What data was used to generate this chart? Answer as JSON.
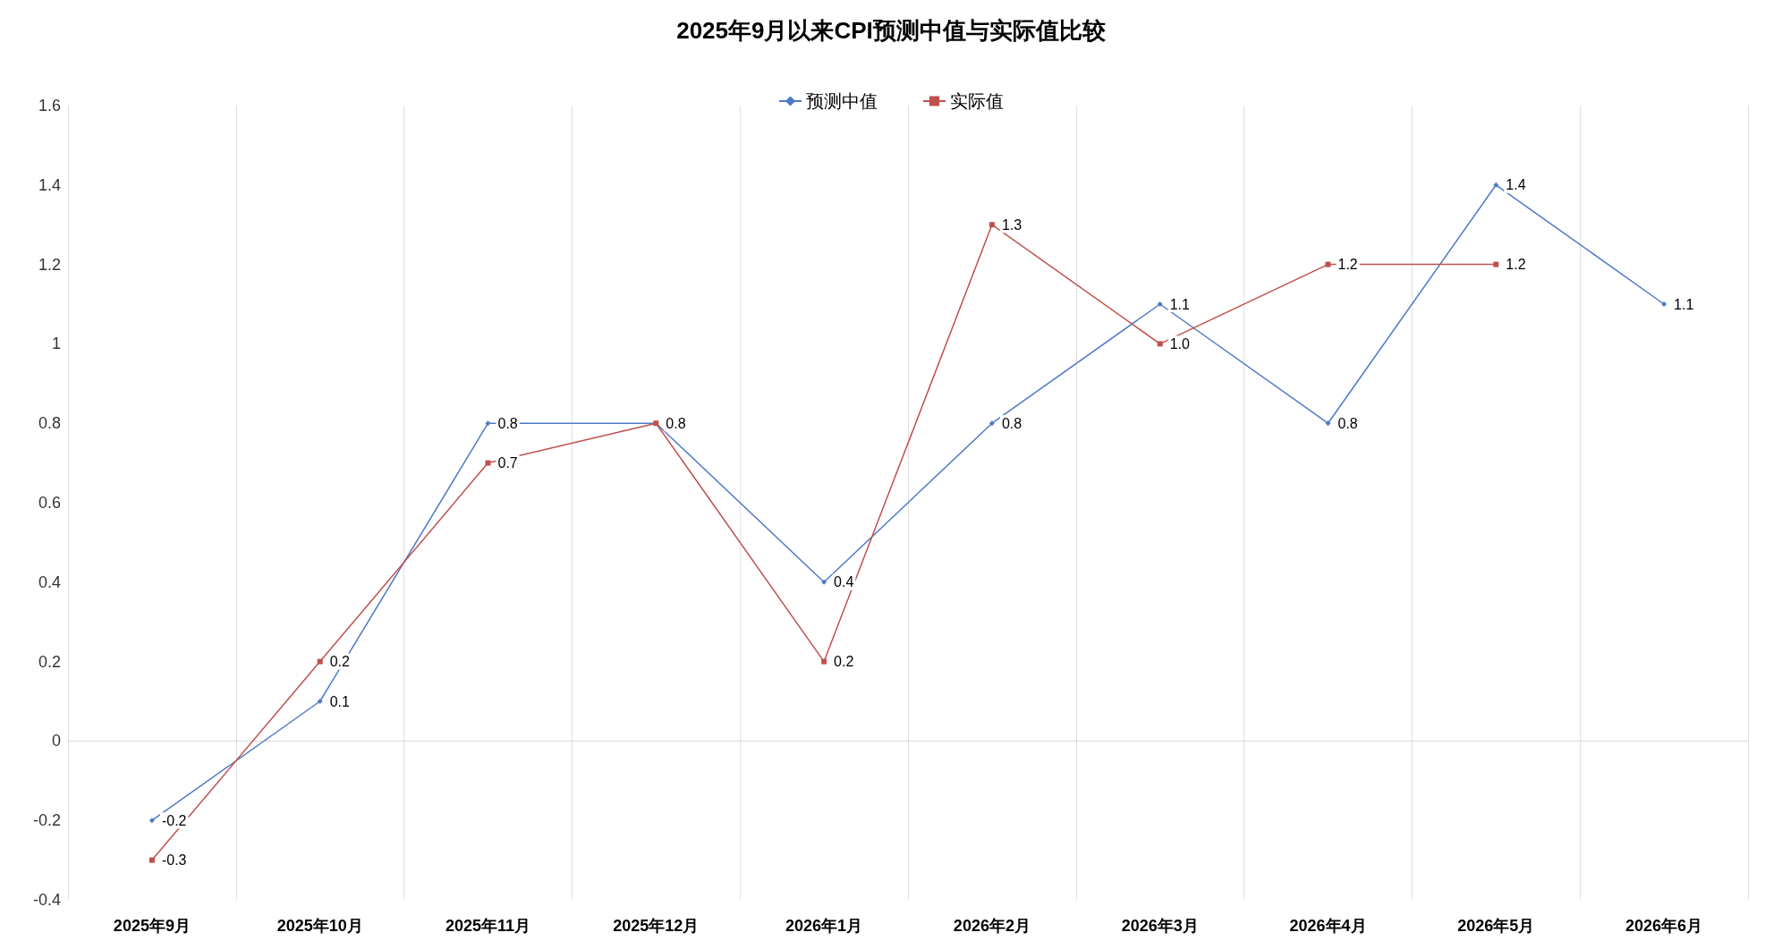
{
  "chart_data": {
    "type": "line",
    "title": "2025年9月以来CPI预测中值与实际值比较",
    "categories": [
      "2025年9月",
      "2025年10月",
      "2025年11月",
      "2025年12月",
      "2026年1月",
      "2026年2月",
      "2026年3月",
      "2026年4月",
      "2026年5月",
      "2026年6月"
    ],
    "series": [
      {
        "name": "预测中值",
        "color": "#4f7ac7",
        "marker": "diamond",
        "values": [
          -0.2,
          0.1,
          0.8,
          0.8,
          0.4,
          0.8,
          1.1,
          0.8,
          1.4,
          1.1
        ],
        "value_labels": [
          "-0.2",
          "0.1",
          "0.8",
          "0.8",
          "0.4",
          "0.8",
          "1.1",
          "0.8",
          "1.4",
          "1.1"
        ]
      },
      {
        "name": "实际值",
        "color": "#c0504d",
        "marker": "square",
        "values": [
          -0.3,
          0.2,
          0.7,
          0.8,
          0.2,
          1.3,
          1.0,
          1.2,
          1.2,
          null
        ],
        "value_labels": [
          "-0.3",
          "0.2",
          "0.7",
          null,
          "0.2",
          "1.3",
          "1.0",
          "1.2",
          "1.2",
          null
        ]
      }
    ],
    "ylim": [
      -0.4,
      1.6
    ],
    "yticks": [
      -0.4,
      -0.2,
      0,
      0.2,
      0.4,
      0.6,
      0.8,
      1,
      1.2,
      1.4,
      1.6
    ],
    "grid": "x",
    "legend": "top",
    "line_style": "solid"
  }
}
